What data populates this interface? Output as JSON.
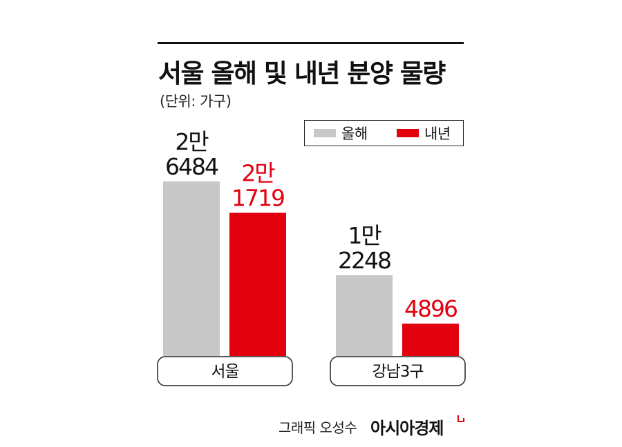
{
  "header": {
    "title": "서울 올해 및 내년 분양 물량",
    "unit": "(단위: 가구)"
  },
  "legend": [
    {
      "label": "올해",
      "color": "#c8c8c8"
    },
    {
      "label": "내년",
      "color": "#e3000f"
    }
  ],
  "chart_data": {
    "type": "bar",
    "title": "서울 올해 및 내년 분양 물량",
    "subtitle": "(단위: 가구)",
    "categories": [
      "서울",
      "강남3구"
    ],
    "series": [
      {
        "name": "올해",
        "color": "#c8c8c8",
        "values": [
          26484,
          12248
        ],
        "labels": [
          [
            "2만",
            "6484"
          ],
          [
            "1만",
            "2248"
          ]
        ]
      },
      {
        "name": "내년",
        "color": "#e3000f",
        "values": [
          21719,
          4896
        ],
        "labels": [
          [
            "2만",
            "1719"
          ],
          [
            "4896"
          ]
        ]
      }
    ],
    "ylim": [
      0,
      26484
    ],
    "grid": false,
    "legend_position": "top-right"
  },
  "footer": {
    "credit": "그래픽 오성수",
    "brand": "아시아경제",
    "brand_color": "#e3000f"
  }
}
